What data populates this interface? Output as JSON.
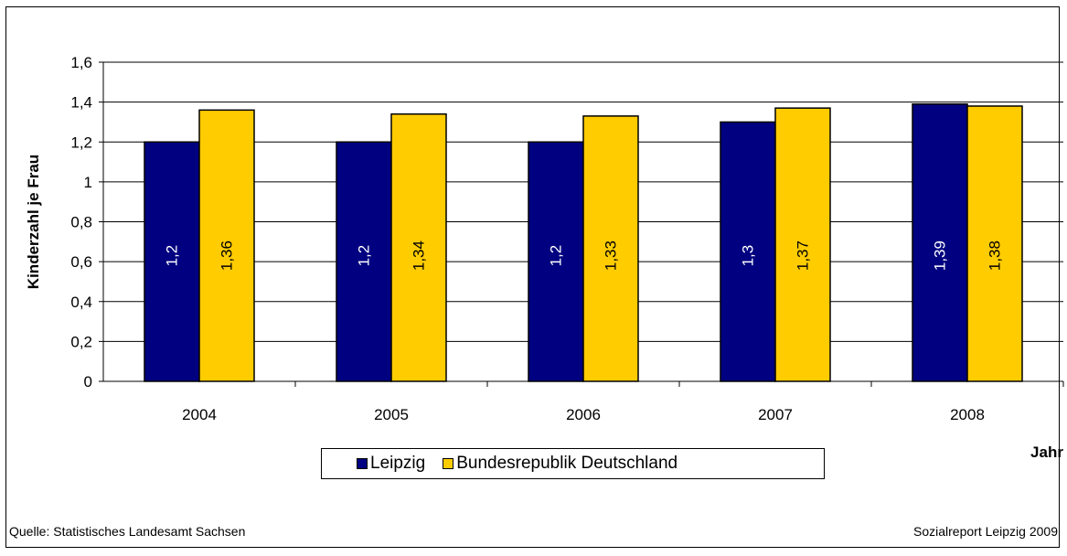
{
  "chart_data": {
    "type": "bar",
    "categories": [
      "2004",
      "2005",
      "2006",
      "2007",
      "2008"
    ],
    "series": [
      {
        "name": "Leipzig",
        "values": [
          1.2,
          1.2,
          1.2,
          1.3,
          1.39
        ],
        "labels": [
          "1,2",
          "1,2",
          "1,2",
          "1,3",
          "1,39"
        ],
        "color": "#000080"
      },
      {
        "name": "Bundesrepublik Deutschland",
        "values": [
          1.36,
          1.34,
          1.33,
          1.37,
          1.38
        ],
        "labels": [
          "1,36",
          "1,34",
          "1,33",
          "1,37",
          "1,38"
        ],
        "color": "#FFCC00"
      }
    ],
    "ylabel": "Kinderzahl je Frau",
    "xlabel": "Jahr",
    "ylim": [
      0,
      1.6
    ],
    "yticks": [
      0,
      0.2,
      0.4,
      0.6,
      0.8,
      1,
      1.2,
      1.4,
      1.6
    ],
    "ytick_labels": [
      "0",
      "0,2",
      "0,4",
      "0,6",
      "0,8",
      "1",
      "1,2",
      "1,4",
      "1,6"
    ],
    "grid": true,
    "legend_position": "bottom-center"
  },
  "footer": {
    "source": "Quelle: Statistisches Landesamt Sachsen",
    "report": "Sozialreport Leipzig 2009"
  }
}
